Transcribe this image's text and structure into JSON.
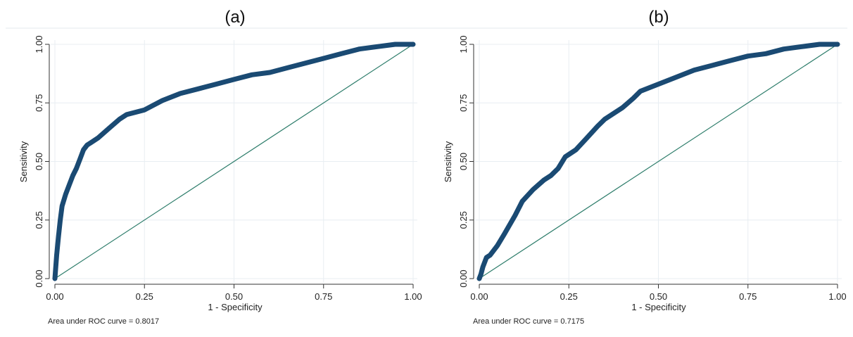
{
  "chart_data": [
    {
      "type": "line",
      "title": "(a)",
      "xlabel": "1 - Specificity",
      "ylabel": "Sensitivity",
      "xlim": [
        0,
        1
      ],
      "ylim": [
        0,
        1
      ],
      "x_ticks": [
        "0.00",
        "0.25",
        "0.50",
        "0.75",
        "1.00"
      ],
      "y_ticks": [
        "0.00",
        "0.25",
        "0.50",
        "0.75",
        "1.00"
      ],
      "grid": true,
      "note": "Area under ROC curve = 0.8017",
      "series": [
        {
          "role": "roc",
          "color": "#1a4a73",
          "x": [
            0,
            0.005,
            0.01,
            0.015,
            0.02,
            0.03,
            0.04,
            0.05,
            0.06,
            0.07,
            0.08,
            0.09,
            0.1,
            0.12,
            0.15,
            0.18,
            0.2,
            0.25,
            0.3,
            0.35,
            0.4,
            0.45,
            0.5,
            0.55,
            0.6,
            0.65,
            0.7,
            0.75,
            0.8,
            0.85,
            0.9,
            0.95,
            1.0
          ],
          "y": [
            0,
            0.1,
            0.18,
            0.25,
            0.31,
            0.36,
            0.4,
            0.44,
            0.47,
            0.51,
            0.55,
            0.57,
            0.58,
            0.6,
            0.64,
            0.68,
            0.7,
            0.72,
            0.76,
            0.79,
            0.81,
            0.83,
            0.85,
            0.87,
            0.88,
            0.9,
            0.92,
            0.94,
            0.96,
            0.98,
            0.99,
            1.0,
            1.0
          ]
        },
        {
          "role": "reference",
          "color": "#2e7d6b",
          "x": [
            0,
            1
          ],
          "y": [
            0,
            1
          ]
        }
      ]
    },
    {
      "type": "line",
      "title": "(b)",
      "xlabel": "1 - Specificity",
      "ylabel": "Sensitivity",
      "xlim": [
        0,
        1
      ],
      "ylim": [
        0,
        1
      ],
      "x_ticks": [
        "0.00",
        "0.25",
        "0.50",
        "0.75",
        "1.00"
      ],
      "y_ticks": [
        "0.00",
        "0.25",
        "0.50",
        "0.75",
        "1.00"
      ],
      "grid": true,
      "note": "Area under ROC curve = 0.7175",
      "series": [
        {
          "role": "roc",
          "color": "#1a4a73",
          "x": [
            0,
            0.005,
            0.01,
            0.02,
            0.03,
            0.05,
            0.07,
            0.1,
            0.12,
            0.15,
            0.18,
            0.2,
            0.22,
            0.24,
            0.25,
            0.27,
            0.3,
            0.33,
            0.35,
            0.38,
            0.4,
            0.43,
            0.45,
            0.5,
            0.55,
            0.6,
            0.65,
            0.7,
            0.75,
            0.8,
            0.85,
            0.9,
            0.95,
            1.0
          ],
          "y": [
            0,
            0.02,
            0.05,
            0.09,
            0.1,
            0.14,
            0.19,
            0.27,
            0.33,
            0.38,
            0.42,
            0.44,
            0.47,
            0.52,
            0.53,
            0.55,
            0.6,
            0.65,
            0.68,
            0.71,
            0.73,
            0.77,
            0.8,
            0.83,
            0.86,
            0.89,
            0.91,
            0.93,
            0.95,
            0.96,
            0.98,
            0.99,
            1.0,
            1.0
          ]
        },
        {
          "role": "reference",
          "color": "#2e7d6b",
          "x": [
            0,
            1
          ],
          "y": [
            0,
            1
          ]
        }
      ]
    }
  ]
}
